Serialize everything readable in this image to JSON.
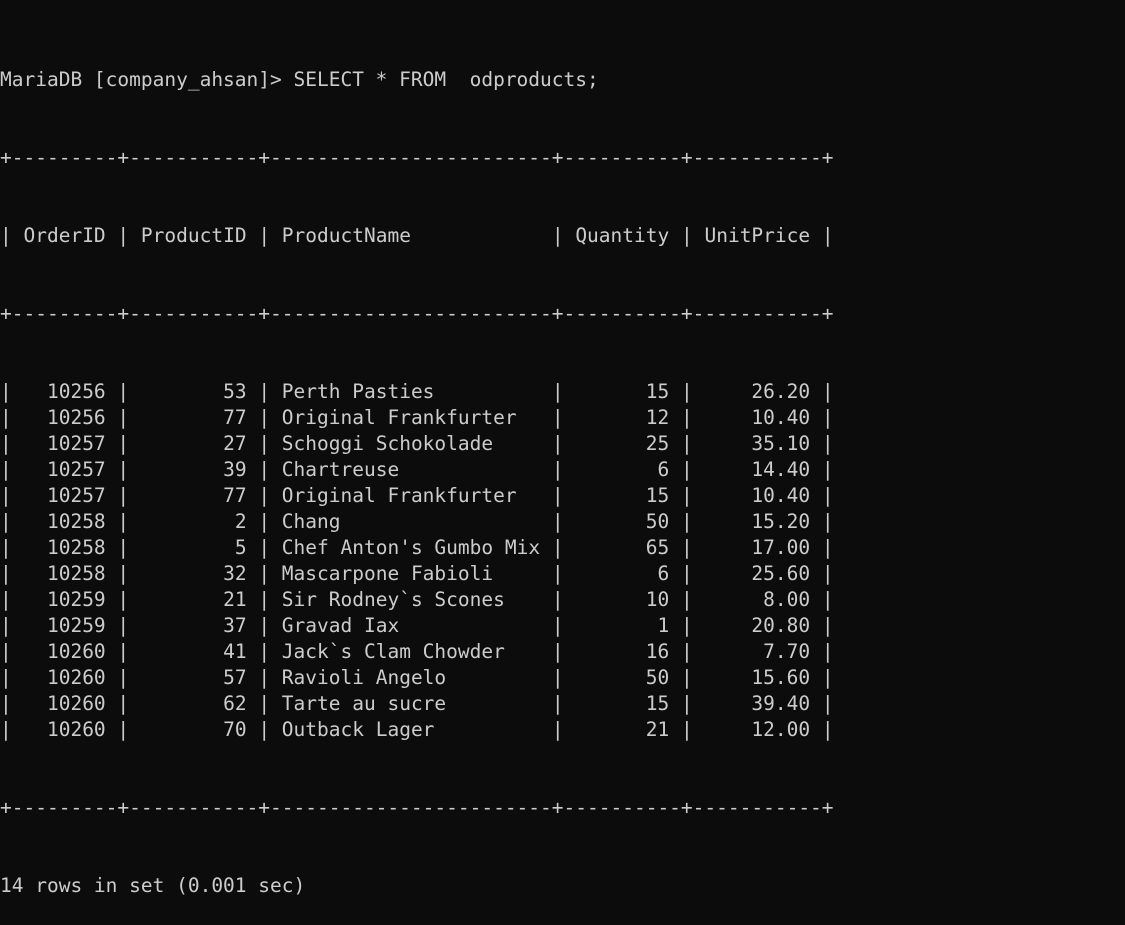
{
  "terminal": {
    "prompt": "MariaDB [company_ahsan]> ",
    "command": "SELECT * FROM  odproducts;",
    "table": {
      "columns": [
        "OrderID",
        "ProductID",
        "ProductName",
        "Quantity",
        "UnitPrice"
      ],
      "rows": [
        [
          "10256",
          "53",
          "Perth Pasties",
          "15",
          "26.20"
        ],
        [
          "10256",
          "77",
          "Original Frankfurter",
          "12",
          "10.40"
        ],
        [
          "10257",
          "27",
          "Schoggi Schokolade",
          "25",
          "35.10"
        ],
        [
          "10257",
          "39",
          "Chartreuse",
          "6",
          "14.40"
        ],
        [
          "10257",
          "77",
          "Original Frankfurter",
          "15",
          "10.40"
        ],
        [
          "10258",
          "2",
          "Chang",
          "50",
          "15.20"
        ],
        [
          "10258",
          "5",
          "Chef Anton's Gumbo Mix",
          "65",
          "17.00"
        ],
        [
          "10258",
          "32",
          "Mascarpone Fabioli",
          "6",
          "25.60"
        ],
        [
          "10259",
          "21",
          "Sir Rodney`s Scones",
          "10",
          "8.00"
        ],
        [
          "10259",
          "37",
          "Gravad Iax",
          "1",
          "20.80"
        ],
        [
          "10260",
          "41",
          "Jack`s Clam Chowder",
          "16",
          "7.70"
        ],
        [
          "10260",
          "57",
          "Ravioli Angelo",
          "50",
          "15.60"
        ],
        [
          "10260",
          "62",
          "Tarte au sucre",
          "15",
          "39.40"
        ],
        [
          "10260",
          "70",
          "Outback Lager",
          "21",
          "12.00"
        ]
      ]
    },
    "summary": "14 rows in set (0.001 sec)"
  }
}
